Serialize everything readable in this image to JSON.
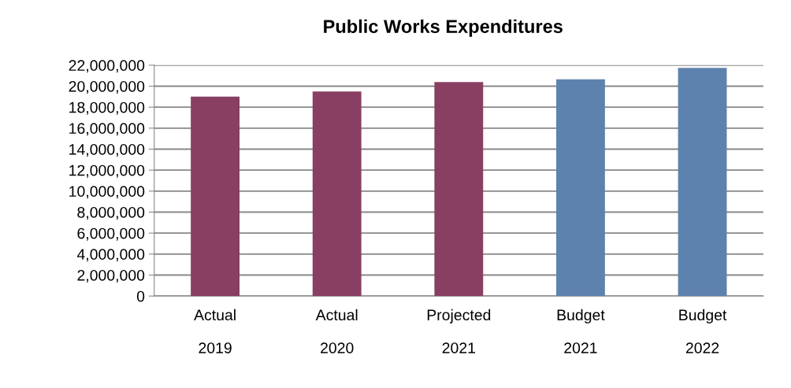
{
  "chart_data": {
    "type": "bar",
    "title": "Public Works Expenditures",
    "categories": [
      "Actual\n\n2019",
      "Actual\n\n2020",
      "Projected\n\n2021",
      "Budget\n\n2021",
      "Budget\n\n2022"
    ],
    "values": [
      19000000,
      19500000,
      20400000,
      20650000,
      21750000
    ],
    "colors": [
      "#883f62",
      "#883f62",
      "#883f62",
      "#5e82ae",
      "#5e82ae"
    ],
    "ylim": [
      0,
      22000000
    ],
    "yticks": [
      {
        "value": 0,
        "label": "0"
      },
      {
        "value": 2000000,
        "label": "2,000,000"
      },
      {
        "value": 4000000,
        "label": "4,000,000"
      },
      {
        "value": 6000000,
        "label": "6,000,000"
      },
      {
        "value": 8000000,
        "label": "8,000,000"
      },
      {
        "value": 10000000,
        "label": "10,000,000"
      },
      {
        "value": 12000000,
        "label": "12,000,000"
      },
      {
        "value": 14000000,
        "label": "14,000,000"
      },
      {
        "value": 16000000,
        "label": "16,000,000"
      },
      {
        "value": 18000000,
        "label": "18,000,000"
      },
      {
        "value": 20000000,
        "label": "20,000,000"
      },
      {
        "value": 22000000,
        "label": "22,000,000"
      }
    ],
    "grid": "y"
  }
}
